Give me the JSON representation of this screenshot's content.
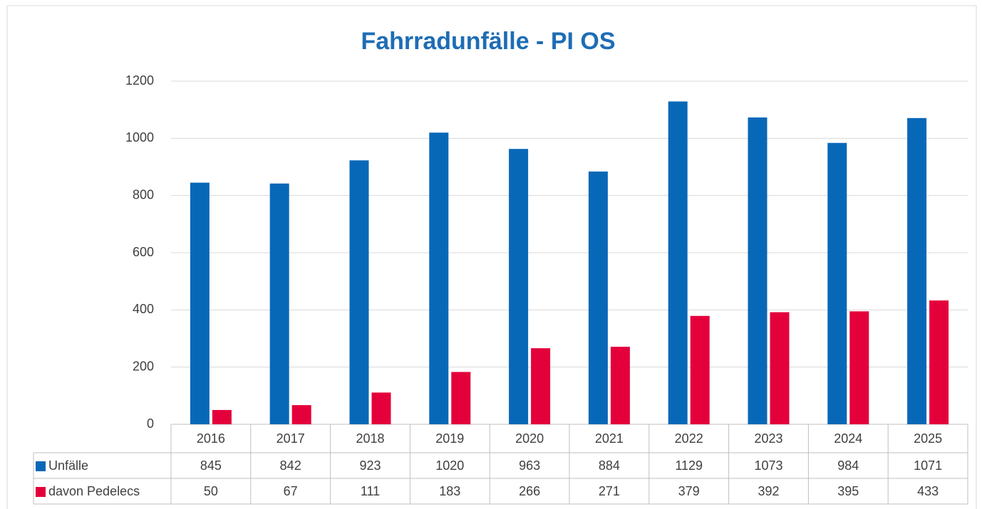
{
  "chart_data": {
    "type": "bar",
    "title": "Fahrradunfälle - PI OS",
    "categories": [
      "2016",
      "2017",
      "2018",
      "2019",
      "2020",
      "2021",
      "2022",
      "2023",
      "2024",
      "2025"
    ],
    "series": [
      {
        "name": "Unfälle",
        "color": "#0868b8",
        "values": [
          845,
          842,
          923,
          1020,
          963,
          884,
          1129,
          1073,
          984,
          1071
        ]
      },
      {
        "name": "davon Pedelecs",
        "color": "#e4003b",
        "values": [
          50,
          67,
          111,
          183,
          266,
          271,
          379,
          392,
          395,
          433
        ]
      }
    ],
    "ylim": [
      0,
      1200
    ],
    "yticks": [
      0,
      200,
      400,
      600,
      800,
      1000,
      1200
    ],
    "grid": true
  }
}
